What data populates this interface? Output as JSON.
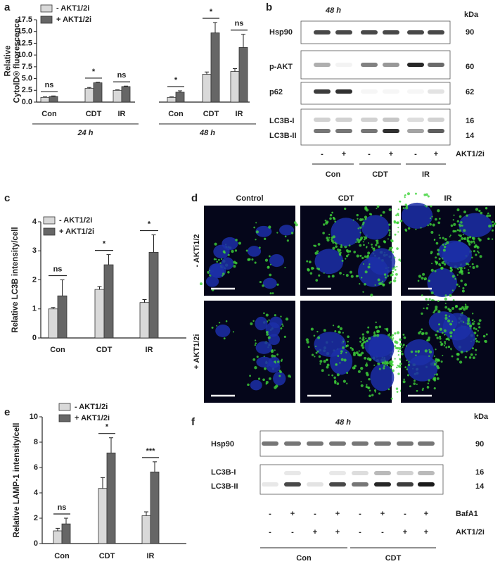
{
  "chart_data": [
    {
      "type": "bar",
      "panel": "a",
      "ylabel": [
        "Relative",
        "CytoID® fluorescence"
      ],
      "categories": [
        "Con",
        "CDT",
        "IR",
        "Con",
        "CDT",
        "IR"
      ],
      "group_labels": [
        "24 h",
        "48 h"
      ],
      "series": [
        {
          "name": "- AKT1/2i",
          "color": "#d9d9d9",
          "values": [
            1.0,
            2.9,
            2.5,
            1.0,
            5.9,
            6.5
          ],
          "errors": [
            0.1,
            0.2,
            0.1,
            0.1,
            0.5,
            0.6
          ]
        },
        {
          "name": "+ AKT1/2i",
          "color": "#666666",
          "values": [
            1.2,
            4.1,
            3.3,
            2.1,
            14.7,
            11.6
          ],
          "errors": [
            0.1,
            0.1,
            0.1,
            0.3,
            2.2,
            2.8
          ]
        }
      ],
      "significance": [
        "ns",
        "*",
        "ns",
        "*",
        "*",
        "ns"
      ],
      "ylim": [
        0,
        17.5
      ],
      "yticks": [
        {
          "value": 0,
          "label": "0.0"
        },
        2.5,
        {
          "value": 5,
          "label": "5.0"
        },
        7.5,
        {
          "value": 10,
          "label": "10.0"
        },
        12.5,
        {
          "value": 15,
          "label": "15.0"
        },
        17.5
      ]
    },
    {
      "type": "bar",
      "panel": "c",
      "ylabel": [
        "Relative LC3B intensity/cell"
      ],
      "categories": [
        "Con",
        "CDT",
        "IR"
      ],
      "series": [
        {
          "name": "- AKT1/2i",
          "color": "#d9d9d9",
          "values": [
            1.0,
            1.67,
            1.22
          ],
          "errors": [
            0.05,
            0.1,
            0.1
          ]
        },
        {
          "name": "+ AKT1/2i",
          "color": "#666666",
          "values": [
            1.45,
            2.52,
            2.95
          ],
          "errors": [
            0.55,
            0.35,
            0.6
          ]
        }
      ],
      "significance": [
        "ns",
        "*",
        "*"
      ],
      "ylim": [
        0,
        4
      ],
      "yticks": [
        0,
        1,
        2,
        3,
        4
      ]
    },
    {
      "type": "bar",
      "panel": "e",
      "ylabel": [
        "Relative LAMP-1 intensity/cell"
      ],
      "categories": [
        "Con",
        "CDT",
        "IR"
      ],
      "series": [
        {
          "name": "- AKT1/2i",
          "color": "#d9d9d9",
          "values": [
            1.0,
            4.35,
            2.2
          ],
          "errors": [
            0.2,
            0.85,
            0.3
          ]
        },
        {
          "name": "+ AKT1/2i",
          "color": "#666666",
          "values": [
            1.55,
            7.15,
            5.65
          ],
          "errors": [
            0.45,
            1.2,
            0.8
          ]
        }
      ],
      "significance": [
        "ns",
        "*",
        "***"
      ],
      "ylim": [
        0,
        10
      ],
      "yticks": [
        0,
        2,
        4,
        6,
        8,
        10
      ]
    }
  ],
  "blot_b": {
    "panel": "b",
    "title": "48 h",
    "unit": "kDa",
    "rows": [
      {
        "labels": [
          "Hsp90"
        ],
        "kda": [
          90
        ]
      },
      {
        "labels": [
          "p-AKT"
        ],
        "kda": [
          60
        ]
      },
      {
        "labels": [
          "p62"
        ],
        "kda": [
          62
        ]
      },
      {
        "labels": [
          "LC3B-I",
          "LC3B-II"
        ],
        "kda": [
          16,
          14
        ]
      }
    ],
    "treatments": [
      {
        "label": "AKT1/2i",
        "signs": [
          "-",
          "+",
          "-",
          "+",
          "-",
          "+"
        ]
      }
    ],
    "groups": [
      "Con",
      "CDT",
      "IR"
    ]
  },
  "micrographs_d": {
    "panel": "d",
    "columns": [
      "Control",
      "CDT",
      "IR"
    ],
    "rows": [
      "- AKTi1/2",
      "+ AKT1/2i"
    ]
  },
  "blot_f": {
    "panel": "f",
    "title": "48 h",
    "unit": "kDa",
    "rows": [
      {
        "labels": [
          "Hsp90"
        ],
        "kda": [
          90
        ]
      },
      {
        "labels": [
          "LC3B-I",
          "LC3B-II"
        ],
        "kda": [
          16,
          14
        ]
      }
    ],
    "treatments": [
      {
        "label": "BafA1",
        "signs": [
          "-",
          "+",
          "-",
          "+",
          "-",
          "+",
          "-",
          "+"
        ]
      },
      {
        "label": "AKT1/2i",
        "signs": [
          "-",
          "-",
          "+",
          "+",
          "-",
          "-",
          "+",
          "+"
        ]
      }
    ],
    "groups": [
      "Con",
      "CDT"
    ]
  }
}
